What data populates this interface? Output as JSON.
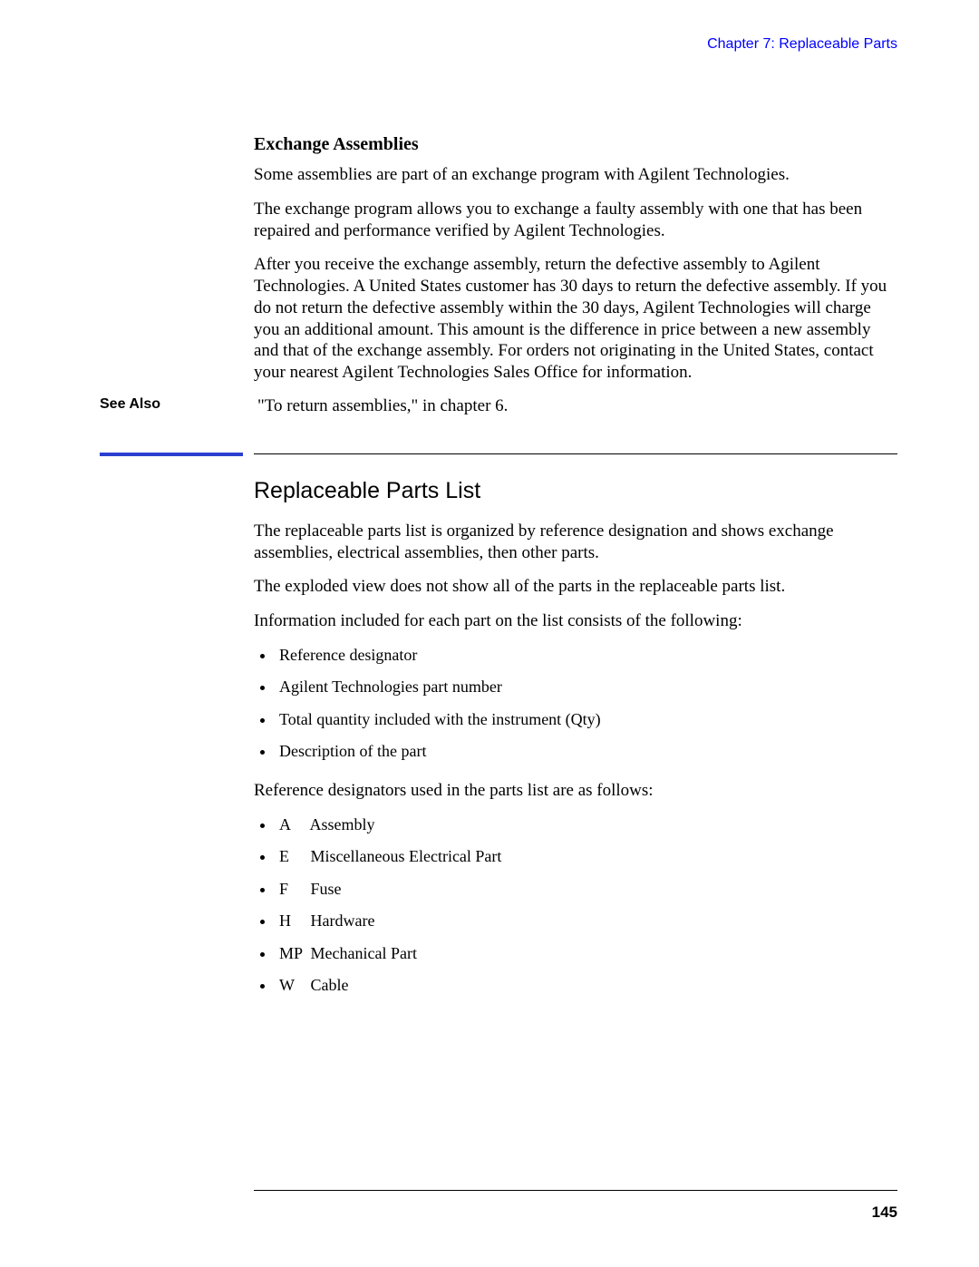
{
  "header": {
    "chapter_link": "Chapter 7: Replaceable Parts"
  },
  "section1": {
    "heading": "Exchange Assemblies",
    "para1": "Some assemblies are part of an exchange program with Agilent Technologies.",
    "para2": "The exchange program allows you to exchange a faulty assembly with one that has been repaired and performance verified by Agilent Technologies.",
    "para3": "After you receive the exchange assembly, return the defective assembly to Agilent Technologies.  A United States customer has 30 days to return the defective assembly.  If you do not return the defective assembly within the 30 days, Agilent Technologies will charge you an additional amount.  This amount is the difference in price between a new assembly and that of the exchange assembly.  For orders not originating in the United States, contact your nearest Agilent Technologies Sales Office for information."
  },
  "see_also": {
    "label": "See Also",
    "text": " \"To return assemblies,\" in chapter 6."
  },
  "section2": {
    "title": "Replaceable Parts List",
    "para1": "The replaceable parts list is organized by reference designation and shows exchange assemblies, electrical assemblies, then other parts.",
    "para2": "The exploded view does not show all of the parts in the replaceable parts list.",
    "para3": "Information included for each part on the list consists of the following:",
    "list1": [
      "Reference designator",
      "Agilent Technologies part number",
      "Total quantity included with the instrument (Qty)",
      "Description of the part"
    ],
    "para4": "Reference designators used in the parts list are as follows:",
    "list2": [
      {
        "code": "A",
        "desc": "Assembly"
      },
      {
        "code": "E",
        "desc": "Miscellaneous Electrical Part"
      },
      {
        "code": "F",
        "desc": "Fuse"
      },
      {
        "code": "H",
        "desc": "Hardware"
      },
      {
        "code": "MP",
        "desc": "Mechanical Part"
      },
      {
        "code": "W",
        "desc": "Cable"
      }
    ]
  },
  "divider": {
    "blue_color": "#2a3fcf",
    "black_color": "#000000"
  },
  "footer": {
    "page_number": "145"
  }
}
